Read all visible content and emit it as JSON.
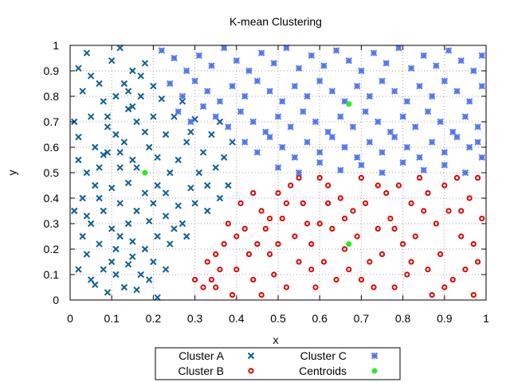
{
  "chart_data": {
    "type": "scatter",
    "title": "K-mean Clustering",
    "xlabel": "x",
    "ylabel": "y",
    "xlim": [
      0,
      1
    ],
    "ylim": [
      0,
      1
    ],
    "xticks": [
      "0",
      "0.1",
      "0.2",
      "0.3",
      "0.4",
      "0.5",
      "0.6",
      "0.7",
      "0.8",
      "0.9",
      "1"
    ],
    "yticks": [
      "0",
      "0.1",
      "0.2",
      "0.3",
      "0.4",
      "0.5",
      "0.6",
      "0.7",
      "0.8",
      "0.9",
      "1"
    ],
    "grid": "dotted",
    "legend_position": "bottom-center",
    "series": [
      {
        "name": "Cluster A",
        "marker": "x",
        "color": "#0f5f95",
        "points": [
          [
            0.02,
            0.91
          ],
          [
            0.04,
            0.97
          ],
          [
            0.07,
            0.85
          ],
          [
            0.1,
            0.94
          ],
          [
            0.12,
            0.99
          ],
          [
            0.15,
            0.9
          ],
          [
            0.18,
            0.93
          ],
          [
            0.13,
            0.85
          ],
          [
            0.08,
            0.78
          ],
          [
            0.03,
            0.82
          ],
          [
            0.01,
            0.7
          ],
          [
            0.05,
            0.72
          ],
          [
            0.09,
            0.68
          ],
          [
            0.14,
            0.75
          ],
          [
            0.17,
            0.8
          ],
          [
            0.2,
            0.84
          ],
          [
            0.22,
            0.79
          ],
          [
            0.16,
            0.7
          ],
          [
            0.11,
            0.65
          ],
          [
            0.06,
            0.6
          ],
          [
            0.02,
            0.55
          ],
          [
            0.04,
            0.5
          ],
          [
            0.08,
            0.57
          ],
          [
            0.12,
            0.58
          ],
          [
            0.15,
            0.55
          ],
          [
            0.19,
            0.6
          ],
          [
            0.23,
            0.65
          ],
          [
            0.25,
            0.72
          ],
          [
            0.27,
            0.78
          ],
          [
            0.3,
            0.71
          ],
          [
            0.28,
            0.62
          ],
          [
            0.26,
            0.55
          ],
          [
            0.24,
            0.5
          ],
          [
            0.21,
            0.45
          ],
          [
            0.18,
            0.42
          ],
          [
            0.14,
            0.46
          ],
          [
            0.1,
            0.44
          ],
          [
            0.06,
            0.45
          ],
          [
            0.03,
            0.4
          ],
          [
            0.01,
            0.35
          ],
          [
            0.05,
            0.3
          ],
          [
            0.08,
            0.35
          ],
          [
            0.12,
            0.38
          ],
          [
            0.16,
            0.35
          ],
          [
            0.2,
            0.38
          ],
          [
            0.23,
            0.33
          ],
          [
            0.27,
            0.3
          ],
          [
            0.3,
            0.38
          ],
          [
            0.33,
            0.45
          ],
          [
            0.35,
            0.52
          ],
          [
            0.32,
            0.58
          ],
          [
            0.34,
            0.65
          ],
          [
            0.36,
            0.7
          ],
          [
            0.29,
            0.66
          ],
          [
            0.31,
            0.5
          ],
          [
            0.37,
            0.56
          ],
          [
            0.38,
            0.45
          ],
          [
            0.39,
            0.62
          ],
          [
            0.36,
            0.4
          ],
          [
            0.33,
            0.35
          ],
          [
            0.28,
            0.25
          ],
          [
            0.24,
            0.22
          ],
          [
            0.21,
            0.25
          ],
          [
            0.18,
            0.2
          ],
          [
            0.15,
            0.23
          ],
          [
            0.11,
            0.2
          ],
          [
            0.07,
            0.22
          ],
          [
            0.04,
            0.18
          ],
          [
            0.02,
            0.12
          ],
          [
            0.05,
            0.08
          ],
          [
            0.08,
            0.12
          ],
          [
            0.11,
            0.1
          ],
          [
            0.14,
            0.14
          ],
          [
            0.17,
            0.1
          ],
          [
            0.2,
            0.15
          ],
          [
            0.23,
            0.12
          ],
          [
            0.13,
            0.05
          ],
          [
            0.09,
            0.03
          ],
          [
            0.06,
            0.06
          ],
          [
            0.16,
            0.04
          ],
          [
            0.19,
            0.08
          ],
          [
            0.21,
            0.01
          ],
          [
            0.03,
            0.25
          ],
          [
            0.1,
            0.28
          ],
          [
            0.14,
            0.3
          ],
          [
            0.19,
            0.31
          ],
          [
            0.25,
            0.28
          ],
          [
            0.07,
            0.52
          ],
          [
            0.09,
            0.58
          ],
          [
            0.13,
            0.62
          ],
          [
            0.16,
            0.52
          ],
          [
            0.18,
            0.66
          ],
          [
            0.2,
            0.72
          ],
          [
            0.11,
            0.8
          ],
          [
            0.14,
            0.82
          ],
          [
            0.17,
            0.88
          ],
          [
            0.05,
            0.88
          ],
          [
            0.21,
            0.56
          ],
          [
            0.23,
            0.42
          ],
          [
            0.26,
            0.37
          ],
          [
            0.29,
            0.44
          ],
          [
            0.07,
            0.4
          ],
          [
            0.12,
            0.52
          ],
          [
            0.15,
            0.76
          ],
          [
            0.09,
            0.72
          ],
          [
            0.02,
            0.64
          ],
          [
            0.04,
            0.33
          ],
          [
            0.1,
            0.15
          ],
          [
            0.15,
            0.17
          ],
          [
            0.12,
            0.25
          ]
        ]
      },
      {
        "name": "Cluster B",
        "marker": "circle",
        "color": "#e00000",
        "points": [
          [
            0.3,
            0.08
          ],
          [
            0.33,
            0.15
          ],
          [
            0.35,
            0.05
          ],
          [
            0.37,
            0.22
          ],
          [
            0.4,
            0.12
          ],
          [
            0.42,
            0.28
          ],
          [
            0.44,
            0.08
          ],
          [
            0.46,
            0.35
          ],
          [
            0.48,
            0.18
          ],
          [
            0.5,
            0.42
          ],
          [
            0.52,
            0.05
          ],
          [
            0.54,
            0.25
          ],
          [
            0.56,
            0.38
          ],
          [
            0.58,
            0.12
          ],
          [
            0.6,
            0.3
          ],
          [
            0.62,
            0.45
          ],
          [
            0.64,
            0.08
          ],
          [
            0.66,
            0.2
          ],
          [
            0.68,
            0.35
          ],
          [
            0.7,
            0.48
          ],
          [
            0.72,
            0.15
          ],
          [
            0.74,
            0.28
          ],
          [
            0.76,
            0.42
          ],
          [
            0.78,
            0.05
          ],
          [
            0.8,
            0.22
          ],
          [
            0.82,
            0.38
          ],
          [
            0.84,
            0.48
          ],
          [
            0.86,
            0.12
          ],
          [
            0.88,
            0.3
          ],
          [
            0.9,
            0.45
          ],
          [
            0.92,
            0.08
          ],
          [
            0.94,
            0.25
          ],
          [
            0.96,
            0.4
          ],
          [
            0.98,
            0.15
          ],
          [
            0.99,
            0.32
          ],
          [
            0.97,
            0.02
          ],
          [
            0.93,
            0.48
          ],
          [
            0.89,
            0.18
          ],
          [
            0.85,
            0.35
          ],
          [
            0.81,
            0.1
          ],
          [
            0.77,
            0.32
          ],
          [
            0.73,
            0.05
          ],
          [
            0.69,
            0.25
          ],
          [
            0.65,
            0.4
          ],
          [
            0.61,
            0.15
          ],
          [
            0.57,
            0.3
          ],
          [
            0.53,
            0.45
          ],
          [
            0.49,
            0.1
          ],
          [
            0.45,
            0.22
          ],
          [
            0.41,
            0.38
          ],
          [
            0.38,
            0.3
          ],
          [
            0.36,
            0.12
          ],
          [
            0.34,
            0.08
          ],
          [
            0.39,
            0.02
          ],
          [
            0.43,
            0.18
          ],
          [
            0.47,
            0.28
          ],
          [
            0.51,
            0.32
          ],
          [
            0.55,
            0.15
          ],
          [
            0.59,
            0.05
          ],
          [
            0.63,
            0.28
          ],
          [
            0.67,
            0.12
          ],
          [
            0.71,
            0.38
          ],
          [
            0.75,
            0.18
          ],
          [
            0.79,
            0.45
          ],
          [
            0.83,
            0.25
          ],
          [
            0.87,
            0.02
          ],
          [
            0.91,
            0.35
          ],
          [
            0.95,
            0.12
          ],
          [
            0.98,
            0.48
          ],
          [
            0.6,
            0.48
          ],
          [
            0.55,
            0.48
          ],
          [
            0.52,
            0.38
          ],
          [
            0.48,
            0.32
          ],
          [
            0.44,
            0.42
          ],
          [
            0.4,
            0.25
          ],
          [
            0.32,
            0.05
          ],
          [
            0.35,
            0.18
          ],
          [
            0.46,
            0.02
          ],
          [
            0.5,
            0.22
          ],
          [
            0.58,
            0.22
          ],
          [
            0.62,
            0.38
          ],
          [
            0.66,
            0.32
          ],
          [
            0.7,
            0.08
          ],
          [
            0.74,
            0.45
          ],
          [
            0.78,
            0.28
          ],
          [
            0.82,
            0.15
          ],
          [
            0.86,
            0.42
          ],
          [
            0.9,
            0.05
          ],
          [
            0.94,
            0.35
          ],
          [
            0.97,
            0.22
          ]
        ]
      },
      {
        "name": "Cluster C",
        "marker": "box",
        "color": "#5577ee",
        "points": [
          [
            0.22,
            0.98
          ],
          [
            0.25,
            0.95
          ],
          [
            0.28,
            0.9
          ],
          [
            0.31,
            0.96
          ],
          [
            0.34,
            0.92
          ],
          [
            0.37,
            0.99
          ],
          [
            0.4,
            0.94
          ],
          [
            0.43,
            0.9
          ],
          [
            0.46,
            0.97
          ],
          [
            0.49,
            0.93
          ],
          [
            0.52,
            0.99
          ],
          [
            0.55,
            0.91
          ],
          [
            0.58,
            0.96
          ],
          [
            0.61,
            0.92
          ],
          [
            0.64,
            0.98
          ],
          [
            0.67,
            0.94
          ],
          [
            0.7,
            0.9
          ],
          [
            0.73,
            0.97
          ],
          [
            0.76,
            0.93
          ],
          [
            0.79,
            0.99
          ],
          [
            0.82,
            0.91
          ],
          [
            0.85,
            0.96
          ],
          [
            0.88,
            0.92
          ],
          [
            0.91,
            0.98
          ],
          [
            0.94,
            0.94
          ],
          [
            0.97,
            0.9
          ],
          [
            0.99,
            0.96
          ],
          [
            0.24,
            0.85
          ],
          [
            0.27,
            0.8
          ],
          [
            0.3,
            0.86
          ],
          [
            0.33,
            0.82
          ],
          [
            0.36,
            0.78
          ],
          [
            0.39,
            0.84
          ],
          [
            0.42,
            0.8
          ],
          [
            0.45,
            0.86
          ],
          [
            0.48,
            0.82
          ],
          [
            0.51,
            0.78
          ],
          [
            0.54,
            0.84
          ],
          [
            0.57,
            0.8
          ],
          [
            0.6,
            0.86
          ],
          [
            0.63,
            0.82
          ],
          [
            0.66,
            0.78
          ],
          [
            0.69,
            0.84
          ],
          [
            0.72,
            0.8
          ],
          [
            0.75,
            0.86
          ],
          [
            0.78,
            0.82
          ],
          [
            0.81,
            0.78
          ],
          [
            0.84,
            0.84
          ],
          [
            0.87,
            0.8
          ],
          [
            0.9,
            0.86
          ],
          [
            0.93,
            0.82
          ],
          [
            0.96,
            0.78
          ],
          [
            0.99,
            0.84
          ],
          [
            0.35,
            0.72
          ],
          [
            0.38,
            0.68
          ],
          [
            0.41,
            0.74
          ],
          [
            0.44,
            0.7
          ],
          [
            0.47,
            0.66
          ],
          [
            0.5,
            0.72
          ],
          [
            0.53,
            0.68
          ],
          [
            0.56,
            0.74
          ],
          [
            0.59,
            0.7
          ],
          [
            0.62,
            0.66
          ],
          [
            0.65,
            0.72
          ],
          [
            0.68,
            0.68
          ],
          [
            0.71,
            0.74
          ],
          [
            0.74,
            0.7
          ],
          [
            0.77,
            0.66
          ],
          [
            0.8,
            0.72
          ],
          [
            0.83,
            0.68
          ],
          [
            0.86,
            0.74
          ],
          [
            0.89,
            0.7
          ],
          [
            0.92,
            0.66
          ],
          [
            0.95,
            0.72
          ],
          [
            0.98,
            0.68
          ],
          [
            0.42,
            0.62
          ],
          [
            0.45,
            0.58
          ],
          [
            0.48,
            0.64
          ],
          [
            0.51,
            0.6
          ],
          [
            0.54,
            0.56
          ],
          [
            0.57,
            0.62
          ],
          [
            0.6,
            0.58
          ],
          [
            0.63,
            0.64
          ],
          [
            0.66,
            0.6
          ],
          [
            0.69,
            0.56
          ],
          [
            0.72,
            0.62
          ],
          [
            0.75,
            0.58
          ],
          [
            0.78,
            0.64
          ],
          [
            0.81,
            0.6
          ],
          [
            0.84,
            0.56
          ],
          [
            0.87,
            0.62
          ],
          [
            0.9,
            0.58
          ],
          [
            0.93,
            0.64
          ],
          [
            0.96,
            0.6
          ],
          [
            0.99,
            0.56
          ],
          [
            0.5,
            0.52
          ],
          [
            0.55,
            0.5
          ],
          [
            0.6,
            0.54
          ],
          [
            0.65,
            0.51
          ],
          [
            0.7,
            0.53
          ],
          [
            0.75,
            0.5
          ],
          [
            0.8,
            0.54
          ],
          [
            0.85,
            0.51
          ],
          [
            0.9,
            0.53
          ],
          [
            0.95,
            0.5
          ],
          [
            0.98,
            0.62
          ],
          [
            0.26,
            0.74
          ],
          [
            0.29,
            0.7
          ],
          [
            0.32,
            0.76
          ]
        ]
      },
      {
        "name": "Centroids",
        "marker": "dot",
        "color": "#22ee22",
        "points": [
          [
            0.18,
            0.5
          ],
          [
            0.67,
            0.77
          ],
          [
            0.67,
            0.22
          ]
        ]
      }
    ]
  }
}
